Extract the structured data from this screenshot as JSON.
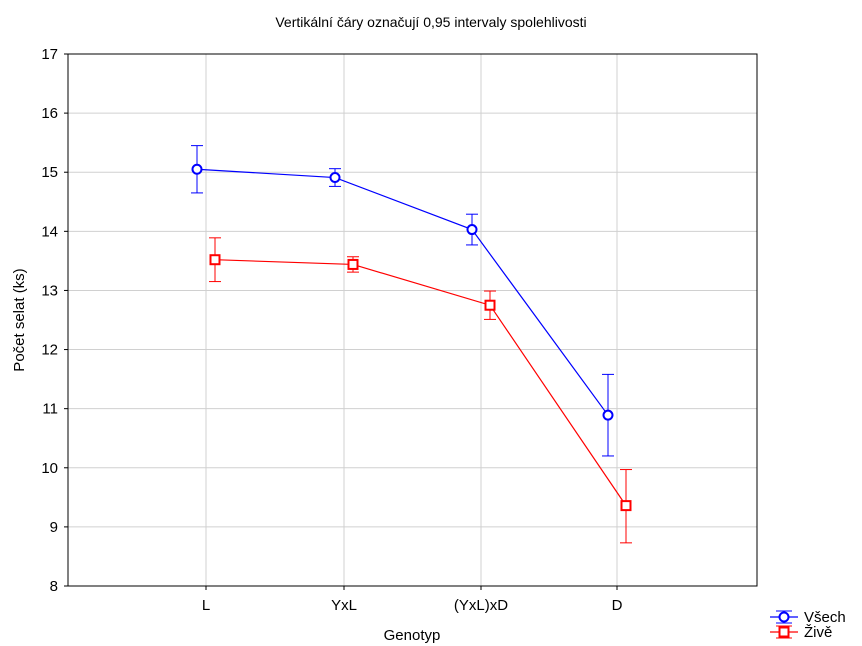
{
  "chart_data": {
    "type": "line",
    "title": "Vertikální čáry označují 0,95 intervaly spolehlivosti",
    "xlabel": "Genotyp",
    "ylabel": "Počet selat (ks)",
    "categories": [
      "L",
      "YxL",
      "(YxL)xD",
      "D"
    ],
    "ylim": [
      8,
      17
    ],
    "yticks": [
      8,
      9,
      10,
      11,
      12,
      13,
      14,
      15,
      16,
      17
    ],
    "grid": true,
    "legend_position": "bottom-right outside",
    "series": [
      {
        "name": "Všech",
        "color": "#0000ff",
        "marker": "circle",
        "values": [
          15.05,
          14.91,
          14.03,
          10.89
        ],
        "ci_low": [
          14.65,
          14.76,
          13.77,
          10.2
        ],
        "ci_high": [
          15.45,
          15.06,
          14.29,
          11.58
        ]
      },
      {
        "name": "Živě",
        "color": "#ff0000",
        "marker": "square",
        "values": [
          13.52,
          13.44,
          12.75,
          9.36
        ],
        "ci_low": [
          13.15,
          13.31,
          12.51,
          8.73
        ],
        "ci_high": [
          13.89,
          13.57,
          12.99,
          9.97
        ]
      }
    ]
  }
}
